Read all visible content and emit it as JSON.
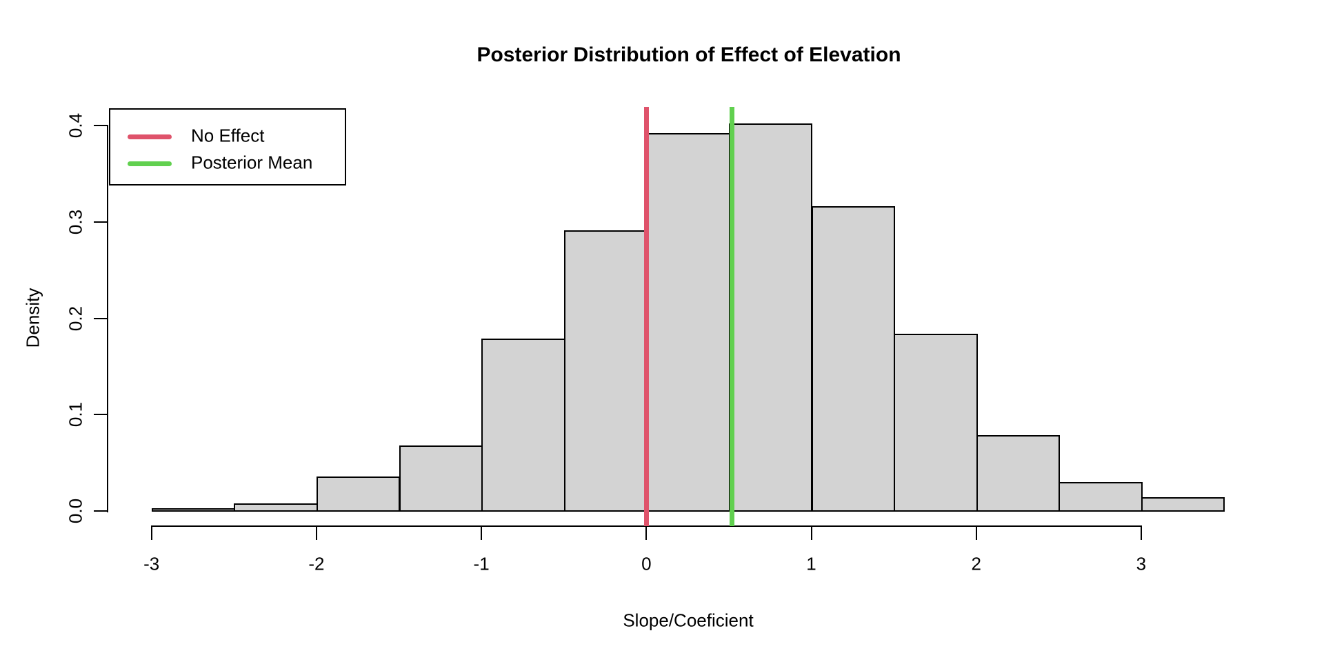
{
  "chart_data": {
    "type": "bar",
    "subtype": "histogram",
    "title": "Posterior Distribution of Effect of Elevation",
    "xlabel": "Slope/Coeficient",
    "ylabel": "Density",
    "x_ticks": [
      -3,
      -2,
      -1,
      0,
      1,
      2,
      3
    ],
    "x_tick_labels": [
      "-3",
      "-2",
      "-1",
      "0",
      "1",
      "2",
      "3"
    ],
    "y_ticks": [
      0.0,
      0.1,
      0.2,
      0.3,
      0.4
    ],
    "y_tick_labels": [
      "0.0",
      "0.1",
      "0.2",
      "0.3",
      "0.4"
    ],
    "xlim": [
      -3,
      3.5
    ],
    "ylim": [
      0,
      0.4
    ],
    "grid": false,
    "bar_fill_color": "#D3D3D3",
    "bar_border_color": "#000000",
    "bins": [
      {
        "x0": -3.0,
        "x1": -2.5,
        "density": 0.003
      },
      {
        "x0": -2.5,
        "x1": -2.0,
        "density": 0.008
      },
      {
        "x0": -2.0,
        "x1": -1.5,
        "density": 0.036
      },
      {
        "x0": -1.5,
        "x1": -1.0,
        "density": 0.068
      },
      {
        "x0": -1.0,
        "x1": -0.5,
        "density": 0.179
      },
      {
        "x0": -0.5,
        "x1": 0.0,
        "density": 0.291
      },
      {
        "x0": 0.0,
        "x1": 0.5,
        "density": 0.392
      },
      {
        "x0": 0.5,
        "x1": 1.0,
        "density": 0.402
      },
      {
        "x0": 1.0,
        "x1": 1.5,
        "density": 0.316
      },
      {
        "x0": 1.5,
        "x1": 2.0,
        "density": 0.184
      },
      {
        "x0": 2.0,
        "x1": 2.5,
        "density": 0.079
      },
      {
        "x0": 2.5,
        "x1": 3.0,
        "density": 0.03
      },
      {
        "x0": 3.0,
        "x1": 3.5,
        "density": 0.014
      }
    ],
    "vlines": [
      {
        "name": "no-effect-line",
        "label": "No Effect",
        "value": 0.0,
        "color": "#DF536B"
      },
      {
        "name": "posterior-mean-line",
        "label": "Posterior Mean",
        "value": 0.52,
        "color": "#61D04F"
      }
    ],
    "legend": {
      "position": "topleft",
      "entries": [
        {
          "label": "No Effect",
          "color": "#DF536B"
        },
        {
          "label": "Posterior Mean",
          "color": "#61D04F"
        }
      ]
    }
  }
}
